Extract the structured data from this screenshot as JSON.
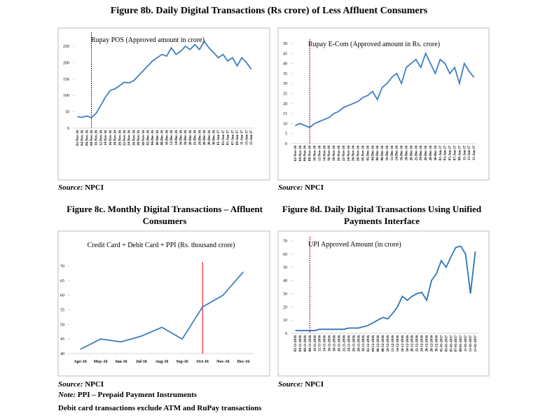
{
  "header": {
    "title": "Figure 8b. Daily Digital Transactions (Rs crore) of Less Affluent Consumers"
  },
  "notes": {
    "note_label": "Note:",
    "note": "PPI – Prepaid Payment Instruments",
    "note2": "Debit card transactions exclude ATM and RuPay transactions"
  },
  "chart_data": [
    {
      "type": "line",
      "label": "Rupay POS (Approved amount in crore)",
      "source_label": "Source:",
      "source": "NPCI",
      "color": "#3f7fc1",
      "event_line": {
        "category": "08-Nov-16",
        "color": "#c00000"
      },
      "categories": [
        "02-Nov-16",
        "04-Nov-16",
        "06-Nov-16",
        "08-Nov-16",
        "10-Nov-16",
        "12-Nov-16",
        "14-Nov-16",
        "16-Nov-16",
        "18-Nov-16",
        "20-Nov-16",
        "22-Nov-16",
        "24-Nov-16",
        "26-Nov-16",
        "28-Nov-16",
        "30-Nov-16",
        "02-Dec-16",
        "04-Dec-16",
        "06-Dec-16",
        "08-Dec-16",
        "10-Dec-16",
        "12-Dec-16",
        "14-Dec-16",
        "16-Dec-16",
        "18-Dec-16",
        "20-Dec-16",
        "22-Dec-16",
        "24-Dec-16",
        "26-Dec-16",
        "28-Dec-16",
        "30-Dec-16",
        "01-Jan-17",
        "03-Jan-17",
        "05-Jan-17",
        "07-Jan-17",
        "09-Jan-17",
        "11-Jan-17",
        "13-Jan-17",
        "15-Jan-17"
      ],
      "values": [
        35,
        33,
        37,
        32,
        45,
        70,
        95,
        115,
        120,
        130,
        140,
        138,
        145,
        160,
        175,
        190,
        205,
        215,
        225,
        220,
        245,
        225,
        235,
        250,
        240,
        255,
        240,
        265,
        245,
        230,
        215,
        225,
        205,
        215,
        190,
        215,
        200,
        180
      ],
      "ylim": [
        0,
        280
      ],
      "yticks": [
        0,
        50,
        100,
        150,
        200,
        250
      ]
    },
    {
      "type": "line",
      "label": "Rupay E-Com (Approved amount in Rs. crore)",
      "source_label": "Source:",
      "source": "NPCI",
      "color": "#3f7fc1",
      "event_line": {
        "category": "08-Nov-16",
        "color": "#c00000"
      },
      "categories": [
        "02-Nov-16",
        "04-Nov-16",
        "06-Nov-16",
        "08-Nov-16",
        "10-Nov-16",
        "12-Nov-16",
        "14-Nov-16",
        "16-Nov-16",
        "18-Nov-16",
        "20-Nov-16",
        "22-Nov-16",
        "24-Nov-16",
        "26-Nov-16",
        "28-Nov-16",
        "30-Nov-16",
        "02-Dec-16",
        "04-Dec-16",
        "06-Dec-16",
        "08-Dec-16",
        "10-Dec-16",
        "12-Dec-16",
        "14-Dec-16",
        "16-Dec-16",
        "18-Dec-16",
        "20-Dec-16",
        "22-Dec-16",
        "24-Dec-16",
        "26-Dec-16",
        "28-Dec-16",
        "30-Dec-16",
        "01-Jan-17",
        "03-Jan-17",
        "05-Jan-17",
        "07-Jan-17",
        "09-Jan-17",
        "11-Jan-17",
        "13-Jan-17",
        "15-Jan-17"
      ],
      "values": [
        9,
        10,
        9,
        8,
        10,
        11,
        12,
        13,
        15,
        16,
        18,
        19,
        20,
        21,
        23,
        24,
        26,
        22,
        28,
        30,
        33,
        35,
        30,
        38,
        40,
        42,
        38,
        45,
        40,
        35,
        42,
        40,
        35,
        38,
        30,
        40,
        36,
        33
      ],
      "ylim": [
        0,
        50
      ],
      "yticks": [
        0,
        5,
        10,
        15,
        20,
        25,
        30,
        35,
        40,
        45,
        50
      ]
    },
    {
      "type": "line",
      "title": "Figure 8c. Monthly Digital Transactions – Affluent Consumers",
      "label": "Credit Card + Debit Card + PPI (Rs. thousand crore)",
      "source_label": "Source:",
      "source": "NPCI",
      "color": "#3f7fc1",
      "event_line": {
        "category": "Oct-16",
        "color": "#e00000"
      },
      "categories": [
        "Apr-16",
        "May-16",
        "Jun-16",
        "Jul-16",
        "Aug-16",
        "Sep-16",
        "Oct-16",
        "Nov-16",
        "Dec-16"
      ],
      "values": [
        41.5,
        45,
        44,
        46,
        49,
        45,
        56,
        60,
        68
      ],
      "ylim": [
        40,
        70
      ],
      "yticks": [
        40,
        45,
        50,
        55,
        60,
        65,
        70
      ]
    },
    {
      "type": "line",
      "title": "Figure 8d. Daily Digital Transactions Using Unified Payments Interface",
      "label": "UPI Approved Amount (in crore)",
      "source_label": "Source:",
      "source": "NPCI",
      "color": "#2e75b6",
      "event_line": {
        "category": "08-11-2016",
        "color": "#c00000"
      },
      "categories": [
        "02-11-2016",
        "04-11-2016",
        "06-11-2016",
        "08-11-2016",
        "10-11-2016",
        "12-11-2016",
        "14-11-2016",
        "16-11-2016",
        "18-11-2016",
        "20-11-2016",
        "22-11-2016",
        "24-11-2016",
        "26-11-2016",
        "28-11-2016",
        "30-11-2016",
        "02-12-2016",
        "04-12-2016",
        "06-12-2016",
        "08-12-2016",
        "10-12-2016",
        "12-12-2016",
        "14-12-2016",
        "16-12-2016",
        "18-12-2016",
        "20-12-2016",
        "22-12-2016",
        "24-12-2016",
        "26-12-2016",
        "28-12-2016",
        "30-12-2016",
        "01-01-2017",
        "03-01-2017",
        "05-01-2017",
        "07-01-2017",
        "09-01-2017",
        "11-01-2017",
        "13-01-2017",
        "15-01-2017"
      ],
      "values": [
        2,
        2,
        2,
        2,
        2,
        3,
        3,
        3,
        3,
        3,
        3,
        4,
        4,
        4,
        5,
        6,
        8,
        10,
        12,
        11,
        15,
        20,
        28,
        25,
        28,
        30,
        31,
        25,
        40,
        45,
        55,
        50,
        58,
        65,
        66,
        60,
        30,
        62
      ],
      "ylim": [
        0,
        70
      ],
      "yticks": [
        0,
        10,
        20,
        30,
        40,
        50,
        60,
        70
      ]
    }
  ]
}
